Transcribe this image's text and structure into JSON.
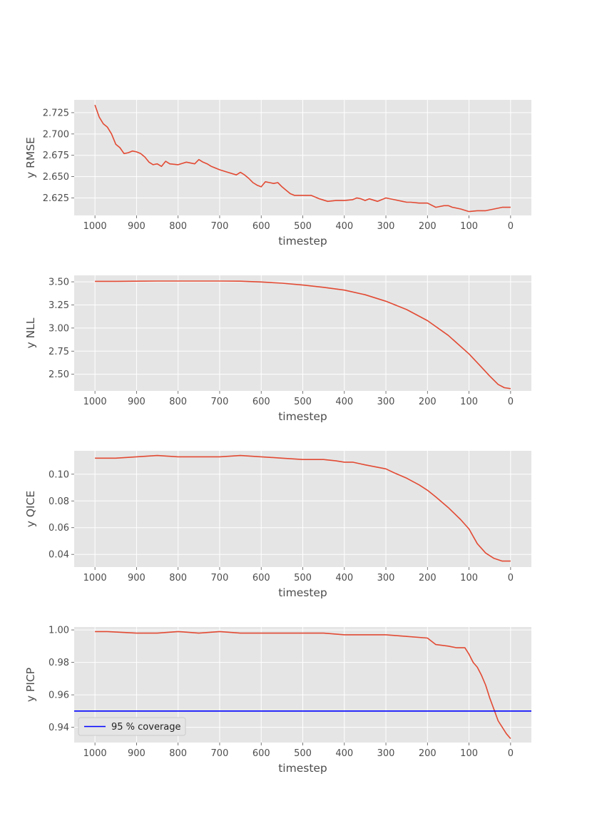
{
  "chart_data": [
    {
      "type": "line",
      "xlabel": "timestep",
      "ylabel": "y RMSE",
      "xlim": [
        1050,
        -50
      ],
      "xticks": [
        1000,
        900,
        800,
        700,
        600,
        500,
        400,
        300,
        200,
        100,
        0
      ],
      "ylim": [
        2.6045,
        2.74
      ],
      "yticks": [
        "2.625",
        "2.650",
        "2.675",
        "2.700",
        "2.725"
      ],
      "grid": true,
      "series": [
        {
          "x": [
            1000,
            990,
            980,
            970,
            960,
            950,
            940,
            930,
            920,
            910,
            900,
            890,
            880,
            870,
            860,
            850,
            840,
            830,
            820,
            800,
            780,
            760,
            750,
            740,
            730,
            720,
            700,
            680,
            660,
            650,
            640,
            630,
            620,
            610,
            600,
            590,
            580,
            570,
            560,
            550,
            540,
            530,
            520,
            500,
            480,
            460,
            440,
            420,
            400,
            380,
            370,
            360,
            350,
            340,
            320,
            300,
            280,
            260,
            250,
            240,
            220,
            200,
            180,
            160,
            150,
            140,
            120,
            100,
            80,
            60,
            40,
            20,
            0
          ],
          "values": [
            2.734,
            2.72,
            2.712,
            2.708,
            2.7,
            2.688,
            2.684,
            2.677,
            2.678,
            2.68,
            2.679,
            2.677,
            2.673,
            2.667,
            2.664,
            2.665,
            2.662,
            2.668,
            2.665,
            2.664,
            2.667,
            2.665,
            2.67,
            2.667,
            2.665,
            2.662,
            2.658,
            2.655,
            2.652,
            2.655,
            2.652,
            2.648,
            2.643,
            2.64,
            2.638,
            2.644,
            2.643,
            2.642,
            2.643,
            2.638,
            2.634,
            2.63,
            2.628,
            2.628,
            2.628,
            2.624,
            2.621,
            2.622,
            2.622,
            2.623,
            2.625,
            2.624,
            2.622,
            2.624,
            2.621,
            2.625,
            2.623,
            2.621,
            2.62,
            2.62,
            2.619,
            2.619,
            2.614,
            2.616,
            2.616,
            2.614,
            2.612,
            2.609,
            2.61,
            2.61,
            2.612,
            2.614,
            2.614
          ]
        }
      ]
    },
    {
      "type": "line",
      "xlabel": "timestep",
      "ylabel": "y NLL",
      "xlim": [
        1050,
        -50
      ],
      "xticks": [
        1000,
        900,
        800,
        700,
        600,
        500,
        400,
        300,
        200,
        100,
        0
      ],
      "ylim": [
        2.32,
        3.57
      ],
      "yticks": [
        "2.50",
        "2.75",
        "3.00",
        "3.25",
        "3.50"
      ],
      "grid": true,
      "series": [
        {
          "x": [
            1000,
            950,
            900,
            850,
            800,
            750,
            700,
            650,
            600,
            550,
            500,
            450,
            400,
            350,
            300,
            250,
            200,
            150,
            100,
            75,
            50,
            30,
            15,
            0
          ],
          "values": [
            3.505,
            3.505,
            3.507,
            3.508,
            3.508,
            3.508,
            3.508,
            3.507,
            3.498,
            3.485,
            3.465,
            3.44,
            3.41,
            3.36,
            3.29,
            3.2,
            3.08,
            2.92,
            2.72,
            2.6,
            2.48,
            2.39,
            2.355,
            2.345
          ]
        }
      ]
    },
    {
      "type": "line",
      "xlabel": "timestep",
      "ylabel": "y QICE",
      "xlim": [
        1050,
        -50
      ],
      "xticks": [
        1000,
        900,
        800,
        700,
        600,
        500,
        400,
        300,
        200,
        100,
        0
      ],
      "ylim": [
        0.0305,
        0.1175
      ],
      "yticks": [
        "0.04",
        "0.06",
        "0.08",
        "0.10"
      ],
      "grid": true,
      "series": [
        {
          "x": [
            1000,
            950,
            900,
            850,
            800,
            750,
            700,
            650,
            600,
            550,
            500,
            450,
            420,
            400,
            380,
            350,
            300,
            280,
            250,
            220,
            200,
            180,
            150,
            120,
            100,
            80,
            60,
            40,
            20,
            0
          ],
          "values": [
            0.112,
            0.112,
            0.113,
            0.114,
            0.113,
            0.113,
            0.113,
            0.114,
            0.113,
            0.112,
            0.111,
            0.111,
            0.11,
            0.109,
            0.109,
            0.107,
            0.104,
            0.101,
            0.097,
            0.092,
            0.088,
            0.083,
            0.075,
            0.066,
            0.059,
            0.048,
            0.041,
            0.037,
            0.035,
            0.035
          ]
        }
      ]
    },
    {
      "type": "line",
      "xlabel": "timestep",
      "ylabel": "y PICP",
      "xlim": [
        1050,
        -50
      ],
      "xticks": [
        1000,
        900,
        800,
        700,
        600,
        500,
        400,
        300,
        200,
        100,
        0
      ],
      "ylim": [
        0.9306,
        1.0018
      ],
      "yticks": [
        "0.94",
        "0.96",
        "0.98",
        "1.00"
      ],
      "grid": true,
      "series": [
        {
          "x": [
            1000,
            970,
            900,
            850,
            800,
            750,
            700,
            650,
            600,
            550,
            500,
            450,
            400,
            350,
            300,
            250,
            200,
            180,
            150,
            130,
            110,
            100,
            90,
            80,
            70,
            60,
            50,
            40,
            30,
            20,
            10,
            0
          ],
          "values": [
            0.999,
            0.999,
            0.998,
            0.998,
            0.999,
            0.998,
            0.999,
            0.998,
            0.998,
            0.998,
            0.998,
            0.998,
            0.997,
            0.997,
            0.997,
            0.996,
            0.995,
            0.991,
            0.99,
            0.989,
            0.989,
            0.985,
            0.98,
            0.977,
            0.972,
            0.966,
            0.958,
            0.951,
            0.944,
            0.94,
            0.936,
            0.933
          ]
        },
        {
          "name": "95 % coverage",
          "y": 0.95,
          "color": "#0000ff"
        }
      ],
      "legend": {
        "location": "lower-left",
        "label": "95 % coverage"
      }
    }
  ],
  "colors": {
    "series": "#e24a33",
    "reference": "#0000ff",
    "panel": "#e5e5e5",
    "grid": "#ffffff"
  }
}
